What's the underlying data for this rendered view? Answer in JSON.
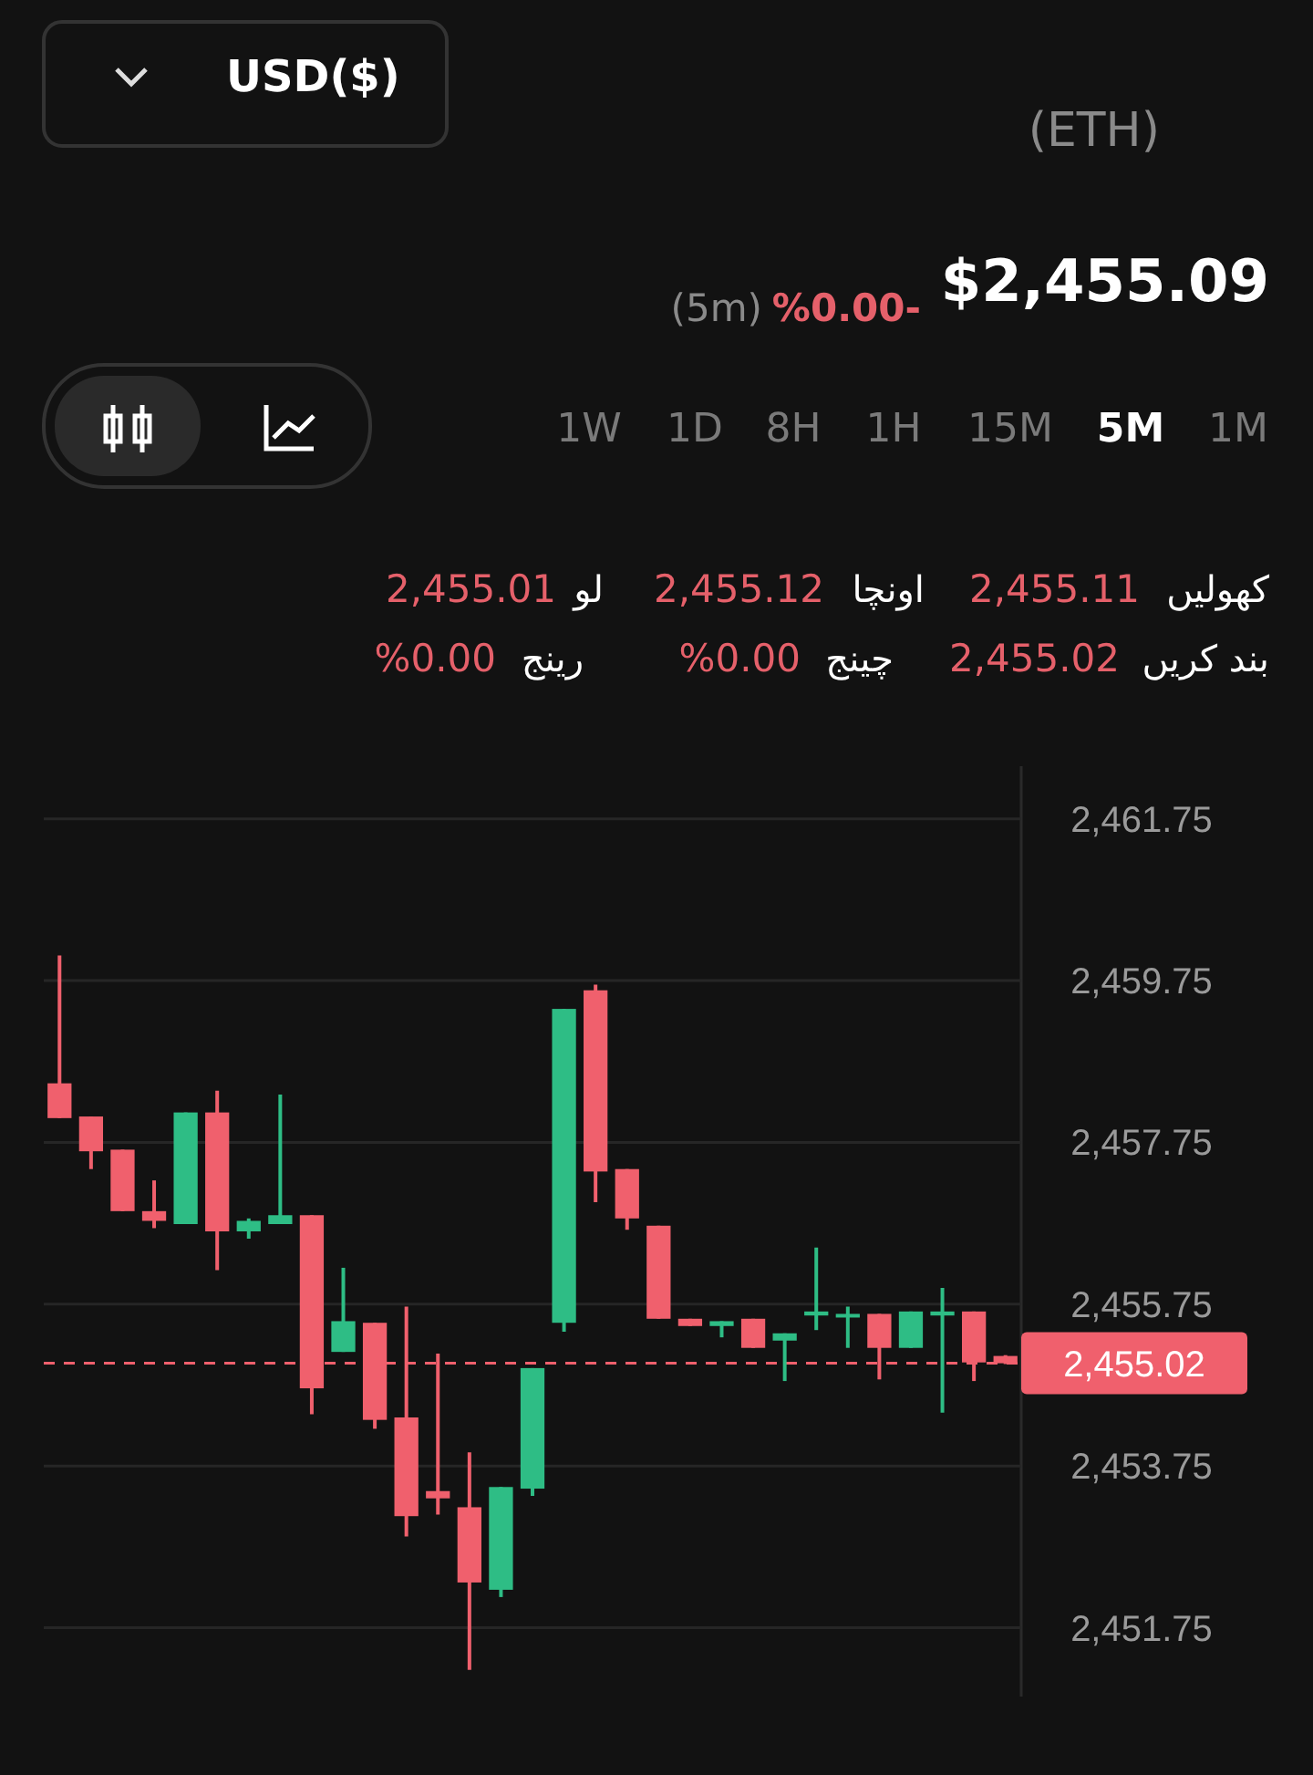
{
  "chart_data": {
    "type": "candlestick",
    "categories": [
      null,
      null,
      null,
      null,
      null,
      null,
      null,
      null,
      null,
      null,
      null,
      null,
      null,
      null,
      null,
      null,
      null,
      null,
      null,
      null,
      null,
      null,
      null,
      null,
      null,
      null,
      null,
      null,
      null,
      null,
      null
    ],
    "ohlc": [
      [
        2458.48,
        2460.06,
        2458.05,
        2458.05
      ],
      [
        2458.07,
        2458.07,
        2457.42,
        2457.64
      ],
      [
        2457.66,
        2457.66,
        2456.9,
        2456.9
      ],
      [
        2456.9,
        2457.28,
        2456.69,
        2456.78
      ],
      [
        2456.74,
        2458.12,
        2456.74,
        2458.12
      ],
      [
        2458.12,
        2458.39,
        2456.17,
        2456.65
      ],
      [
        2456.65,
        2456.81,
        2456.56,
        2456.78
      ],
      [
        2456.74,
        2458.34,
        2456.74,
        2456.85
      ],
      [
        2456.85,
        2456.85,
        2454.39,
        2454.71
      ],
      [
        2455.16,
        2456.2,
        2455.16,
        2455.54
      ],
      [
        2455.52,
        2455.52,
        2454.21,
        2454.32
      ],
      [
        2454.35,
        2455.72,
        2452.88,
        2453.13
      ],
      [
        2453.44,
        2455.14,
        2453.15,
        2453.35
      ],
      [
        2453.24,
        2453.92,
        2451.23,
        2452.31
      ],
      [
        2452.22,
        2453.49,
        2452.13,
        2453.49
      ],
      [
        2453.47,
        2454.96,
        2453.38,
        2454.96
      ],
      [
        2455.52,
        2459.4,
        2455.41,
        2459.4
      ],
      [
        2459.63,
        2459.7,
        2457.01,
        2457.39
      ],
      [
        2457.42,
        2457.42,
        2456.67,
        2456.81
      ],
      [
        2456.72,
        2456.72,
        2455.57,
        2455.57
      ],
      [
        2455.57,
        2455.57,
        2455.48,
        2455.48
      ],
      [
        2455.48,
        2455.54,
        2455.34,
        2455.54
      ],
      [
        2455.57,
        2455.57,
        2455.21,
        2455.21
      ],
      [
        2455.3,
        2455.39,
        2454.8,
        2455.39
      ],
      [
        2455.61,
        2456.45,
        2455.43,
        2455.66
      ],
      [
        2455.61,
        2455.72,
        2455.21,
        2455.63
      ],
      [
        2455.63,
        2455.63,
        2454.82,
        2455.21
      ],
      [
        2455.21,
        2455.66,
        2455.21,
        2455.66
      ],
      [
        2455.61,
        2455.95,
        2454.41,
        2455.66
      ],
      [
        2455.66,
        2455.66,
        2454.8,
        2455.03
      ],
      [
        2455.11,
        2455.12,
        2455.01,
        2455.02
      ]
    ],
    "colors": [
      "#f0606d",
      "#f0606d",
      "#f0606d",
      "#f0606d",
      "#2ebd85",
      "#f0606d",
      "#2ebd85",
      "#2ebd85",
      "#f0606d",
      "#2ebd85",
      "#f0606d",
      "#f0606d",
      "#f0606d",
      "#f0606d",
      "#2ebd85",
      "#2ebd85",
      "#2ebd85",
      "#f0606d",
      "#f0606d",
      "#f0606d",
      "#f0606d",
      "#2ebd85",
      "#f0606d",
      "#2ebd85",
      "#2ebd85",
      "#2ebd85",
      "#f0606d",
      "#2ebd85",
      "#2ebd85",
      "#f0606d",
      "#f0606d"
    ],
    "ylim": [
      2450.9,
      2462.4
    ],
    "yticks": [
      {
        "value": 2461.75,
        "label": "2,461.75"
      },
      {
        "value": 2459.75,
        "label": "2,459.75"
      },
      {
        "value": 2457.75,
        "label": "2,457.75"
      },
      {
        "value": 2455.75,
        "label": "2,455.75"
      },
      {
        "value": 2453.75,
        "label": "2,453.75"
      },
      {
        "value": 2451.75,
        "label": "2,451.75"
      }
    ],
    "grid": "y",
    "tick_labels": "y",
    "ref_lines": [
      {
        "axis": "y",
        "value": 2455.02,
        "label": "2,455.02",
        "color": "#f0606d",
        "line_style": "dashed"
      }
    ],
    "annotations": [
      "USD($)",
      "(ETH)",
      "$2,455.09",
      "%0.00-",
      "(5m)",
      "1W",
      "1D",
      "8H",
      "1H",
      "15M",
      "5M",
      "1M",
      "کھولیں",
      "2,455.11",
      "اونچا",
      "2,455.12",
      "لو",
      "2,455.01",
      "بند کریں",
      "2,455.02",
      "چینج",
      "%0.00",
      "رینج",
      "%0.00"
    ]
  }
}
